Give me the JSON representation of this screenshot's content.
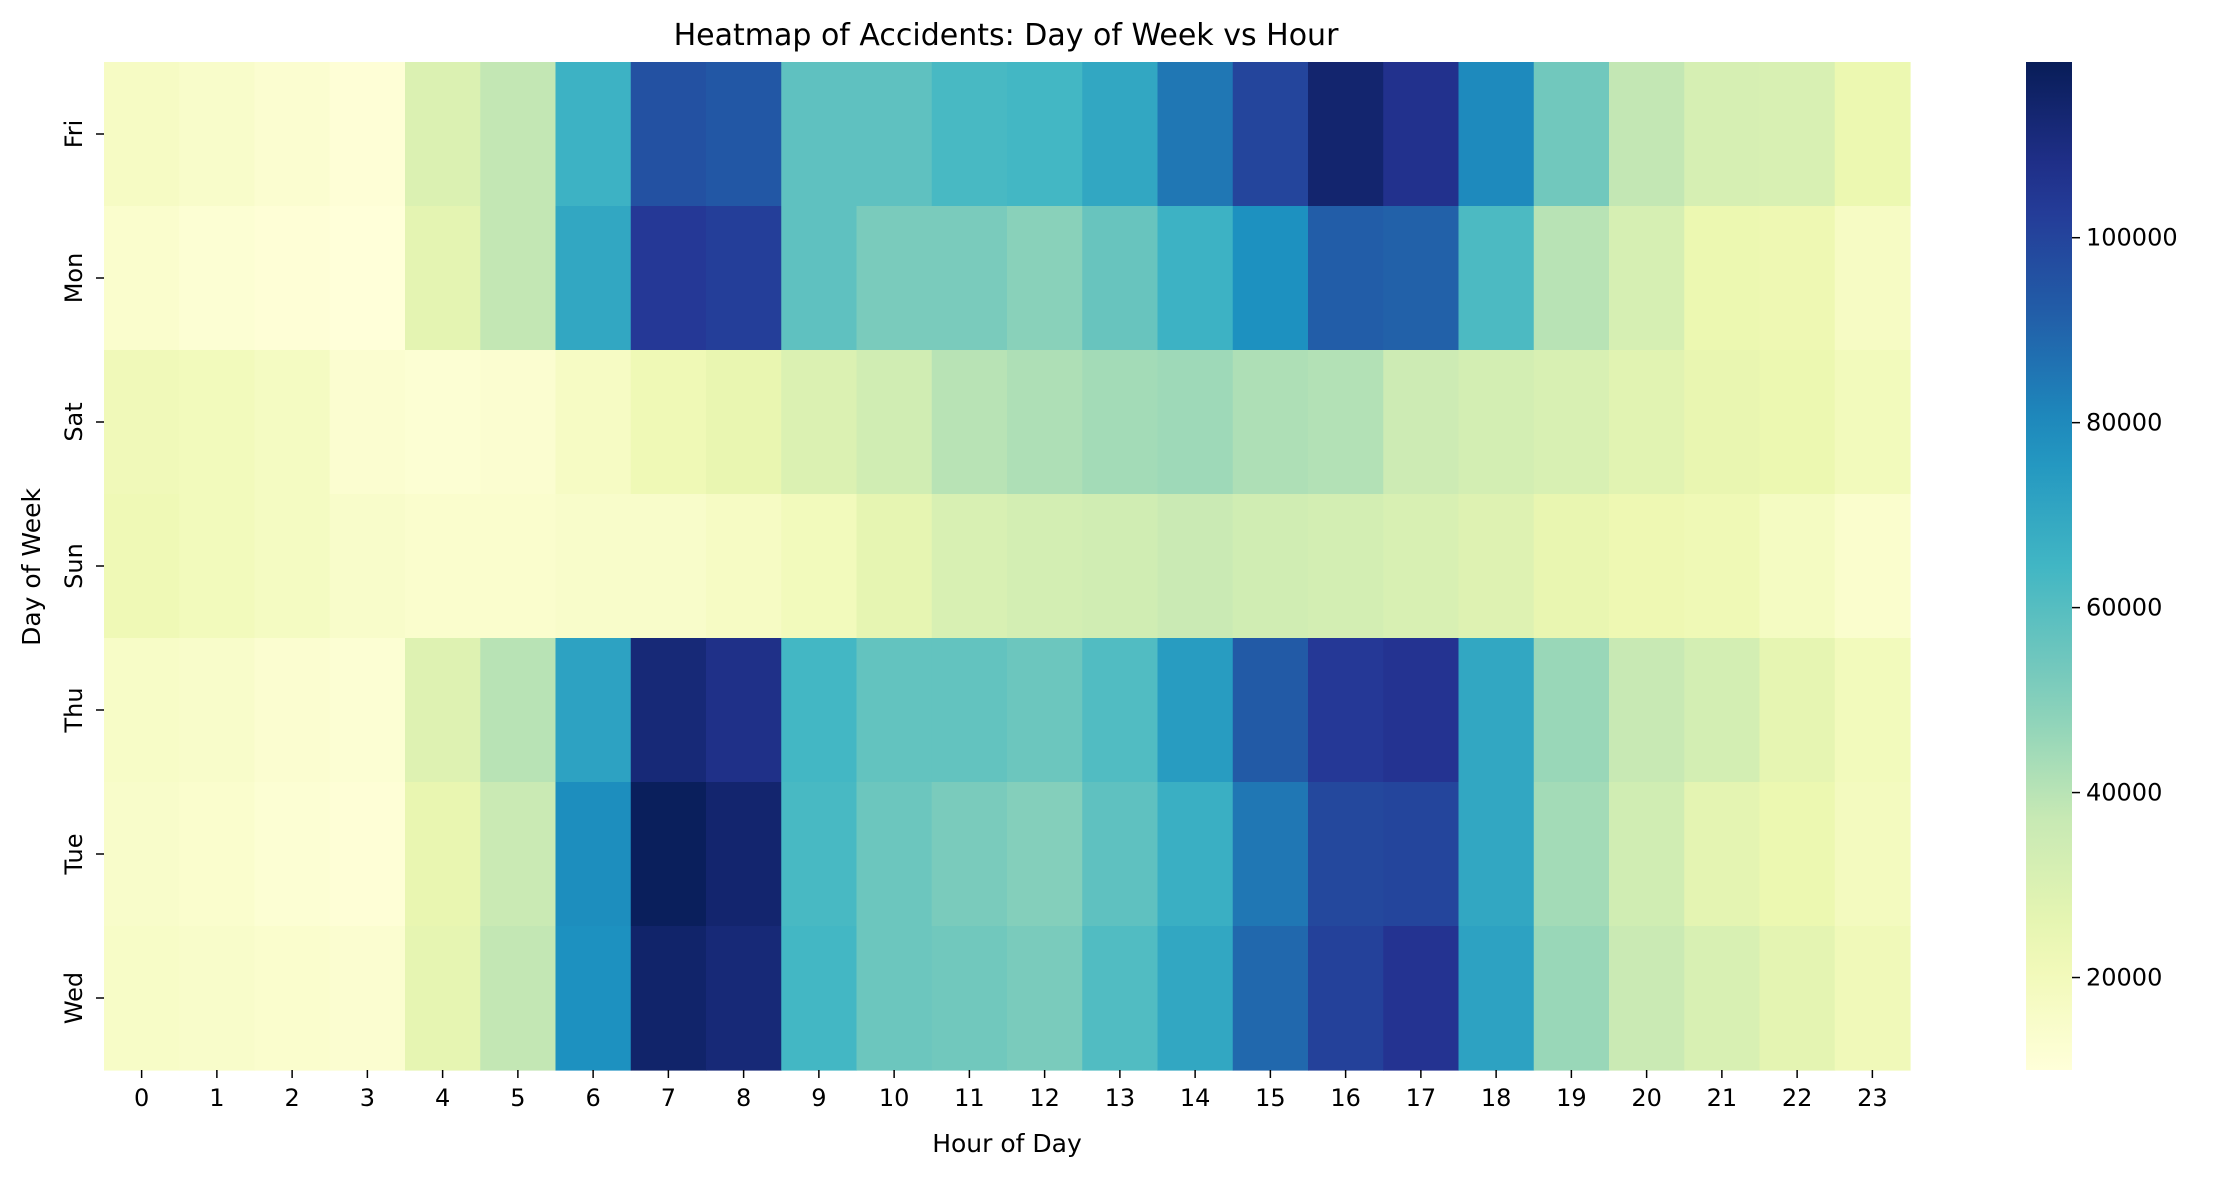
{
  "chart_data": {
    "type": "heatmap",
    "title": "Heatmap of Accidents: Day of Week vs Hour",
    "xlabel": "Hour of Day",
    "ylabel": "Day of Week",
    "x": [
      "0",
      "1",
      "2",
      "3",
      "4",
      "5",
      "6",
      "7",
      "8",
      "9",
      "10",
      "11",
      "12",
      "13",
      "14",
      "15",
      "16",
      "17",
      "18",
      "19",
      "20",
      "21",
      "22",
      "23"
    ],
    "y": [
      "Fri",
      "Mon",
      "Sat",
      "Sun",
      "Thu",
      "Tue",
      "Wed"
    ],
    "values": [
      [
        17000,
        15000,
        13000,
        11000,
        30000,
        38000,
        66000,
        96000,
        94000,
        58000,
        58000,
        63000,
        64000,
        70000,
        85000,
        100000,
        114000,
        107000,
        80000,
        54000,
        38000,
        32000,
        31000,
        24000
      ],
      [
        14000,
        12000,
        11000,
        10000,
        27000,
        38000,
        70000,
        104000,
        102000,
        58000,
        52000,
        52000,
        49000,
        56000,
        66000,
        78000,
        92000,
        91000,
        62000,
        40000,
        32000,
        24000,
        23000,
        17000
      ],
      [
        21000,
        20000,
        18000,
        13000,
        12000,
        13000,
        17000,
        22000,
        25000,
        30000,
        34000,
        40000,
        42000,
        44000,
        45000,
        42000,
        41000,
        35000,
        33000,
        31000,
        28000,
        25000,
        24000,
        20000
      ],
      [
        22000,
        20000,
        18000,
        15000,
        14000,
        14000,
        15000,
        15000,
        17000,
        20000,
        26000,
        31000,
        33000,
        34000,
        36000,
        34000,
        33000,
        31000,
        29000,
        25000,
        23000,
        22000,
        18000,
        14000
      ],
      [
        16000,
        15000,
        13000,
        12000,
        29000,
        40000,
        72000,
        112000,
        108000,
        64000,
        57000,
        57000,
        55000,
        61000,
        74000,
        93000,
        104000,
        106000,
        70000,
        46000,
        37000,
        33000,
        26000,
        20000
      ],
      [
        15000,
        14000,
        12000,
        11000,
        25000,
        36000,
        79000,
        118000,
        114000,
        63000,
        55000,
        52000,
        50000,
        58000,
        67000,
        85000,
        99000,
        100000,
        70000,
        44000,
        34000,
        27000,
        24000,
        19000
      ],
      [
        16000,
        15000,
        14000,
        13000,
        26000,
        38000,
        78000,
        115000,
        112000,
        64000,
        55000,
        54000,
        52000,
        61000,
        70000,
        89000,
        101000,
        106000,
        72000,
        46000,
        36000,
        31000,
        27000,
        21000
      ]
    ],
    "colorbar": {
      "ticks": [
        20000,
        40000,
        60000,
        80000,
        100000
      ],
      "tick_labels": [
        "20000",
        "40000",
        "60000",
        "80000",
        "100000"
      ],
      "vmin": 10000,
      "vmax": 119000,
      "colormap": "YlGnBu"
    },
    "grid": false,
    "legend": "colorbar-right"
  }
}
